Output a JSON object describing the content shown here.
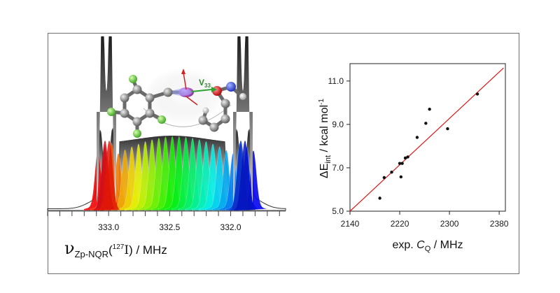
{
  "left_panel": {
    "xaxis_symbol": "ν",
    "xaxis_subscript": "Zp-NQR",
    "xaxis_paren_open": "(",
    "xaxis_superscript": "127",
    "xaxis_element": "I",
    "xaxis_rest": ") / MHz",
    "vector_label": "V",
    "vector_subscript": "33"
  },
  "chart_data": [
    {
      "type": "area",
      "description_note": "",
      "xlim": [
        333.5,
        331.55
      ],
      "x_ticks": [
        "333.0",
        "332.5",
        "332.0"
      ],
      "x_tick_values": [
        333.0,
        332.5,
        332.0
      ],
      "xlabel": "νZp-NQR(127I) / MHz",
      "grid": false
    },
    {
      "type": "scatter",
      "xlabel": "exp. C_Q / MHz",
      "ylabel": "ΔE_int / kcal mol-1",
      "xlim": [
        2140,
        2390
      ],
      "ylim": [
        5.0,
        11.8
      ],
      "x_ticks": [
        "2140",
        "2220",
        "2300",
        "2380"
      ],
      "x_tick_values": [
        2140,
        2220,
        2300,
        2380
      ],
      "y_ticks": [
        "5.0",
        "7.0",
        "9.0",
        "11.0"
      ],
      "y_tick_values": [
        5.0,
        7.0,
        9.0,
        11.0
      ],
      "points": [
        {
          "x": 2188,
          "y": 5.6
        },
        {
          "x": 2195,
          "y": 6.55
        },
        {
          "x": 2207,
          "y": 6.8
        },
        {
          "x": 2220,
          "y": 7.2
        },
        {
          "x": 2222,
          "y": 6.58
        },
        {
          "x": 2224,
          "y": 7.2
        },
        {
          "x": 2229,
          "y": 7.45
        },
        {
          "x": 2233,
          "y": 7.5
        },
        {
          "x": 2248,
          "y": 8.4
        },
        {
          "x": 2262,
          "y": 9.05
        },
        {
          "x": 2268,
          "y": 9.7
        },
        {
          "x": 2297,
          "y": 8.8
        },
        {
          "x": 2345,
          "y": 10.4
        }
      ],
      "fit_line": {
        "x": [
          2140,
          2387
        ],
        "y": [
          5.0,
          11.6
        ]
      },
      "colors": {
        "points": "#111111",
        "fit_line": "#e01515"
      },
      "grid": false
    }
  ]
}
